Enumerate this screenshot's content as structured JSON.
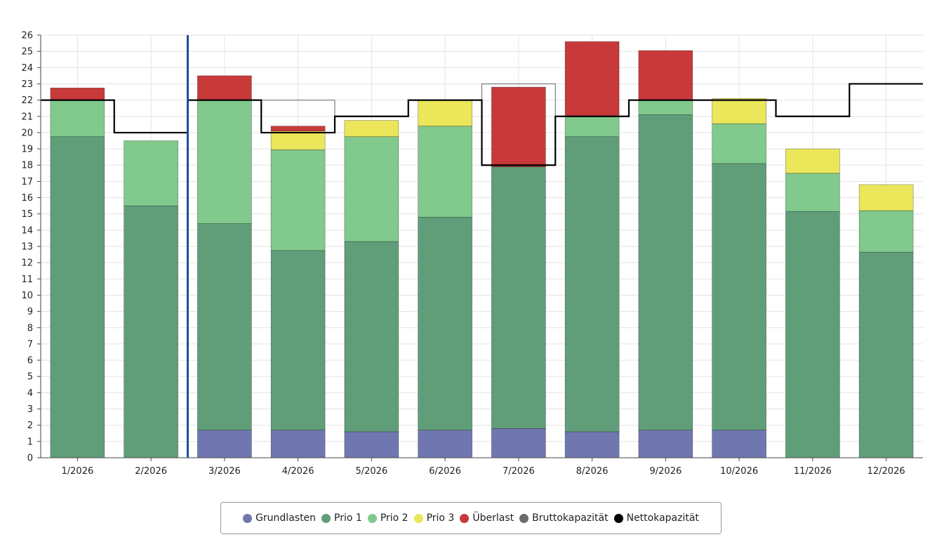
{
  "chart_data": {
    "type": "bar",
    "stacked": true,
    "title": "",
    "xlabel": "",
    "ylabel": "",
    "ylim": [
      0,
      26
    ],
    "y_ticks": [
      0,
      1,
      2,
      3,
      4,
      5,
      6,
      7,
      8,
      9,
      10,
      11,
      12,
      13,
      14,
      15,
      16,
      17,
      18,
      19,
      20,
      21,
      22,
      23,
      24,
      25,
      26
    ],
    "grid": true,
    "categories": [
      "1/2026",
      "2/2026",
      "3/2026",
      "4/2026",
      "5/2026",
      "6/2026",
      "7/2026",
      "8/2026",
      "9/2026",
      "10/2026",
      "11/2026",
      "12/2026"
    ],
    "series": [
      {
        "name": "Grundlasten",
        "color": "#7077b0",
        "values": [
          0,
          0,
          1.7,
          1.7,
          1.6,
          1.7,
          1.8,
          1.6,
          1.7,
          1.7,
          0,
          0
        ]
      },
      {
        "name": "Prio 1",
        "color": "#609e7a",
        "values": [
          19.75,
          15.5,
          12.7,
          11.05,
          11.7,
          13.1,
          16.1,
          18.15,
          19.4,
          16.4,
          15.15,
          12.65
        ]
      },
      {
        "name": "Prio 2",
        "color": "#81c98d",
        "values": [
          2.25,
          4.0,
          7.6,
          6.2,
          6.45,
          5.6,
          0,
          1.25,
          0.9,
          2.45,
          2.35,
          2.55
        ]
      },
      {
        "name": "Prio 3",
        "color": "#ebe65a",
        "values": [
          0,
          0,
          0,
          1.15,
          1.0,
          1.6,
          0,
          0,
          0,
          1.55,
          1.5,
          1.6
        ]
      },
      {
        "name": "Überlast",
        "color": "#c83a3a",
        "values": [
          0.75,
          0,
          1.5,
          0.3,
          0,
          0,
          4.9,
          4.6,
          3.05,
          0,
          0,
          0
        ]
      }
    ],
    "bruttokapazitaet": {
      "name": "Bruttokapazität",
      "color": "#666666",
      "values": [
        22,
        20,
        22,
        22,
        21,
        22,
        23,
        21,
        22,
        22,
        21,
        23
      ]
    },
    "nettokapazitaet": {
      "name": "Nettokapazität",
      "color": "#000000",
      "values": [
        22,
        20,
        22,
        20,
        21,
        22,
        18,
        21,
        22,
        22,
        21,
        23
      ]
    },
    "current_marker": {
      "color": "#1e4f96",
      "between": [
        "2/2026",
        "3/2026"
      ]
    },
    "legend_position": "bottom-center"
  },
  "legend": {
    "items": [
      {
        "label": "Grundlasten",
        "color": "#7077b0"
      },
      {
        "label": "Prio 1",
        "color": "#609e7a"
      },
      {
        "label": "Prio 2",
        "color": "#81c98d"
      },
      {
        "label": "Prio 3",
        "color": "#ebe65a"
      },
      {
        "label": "Überlast",
        "color": "#c83a3a"
      },
      {
        "label": "Bruttokapazität",
        "color": "#6b6b6b"
      },
      {
        "label": "Nettokapazität",
        "color": "#000000"
      }
    ]
  }
}
